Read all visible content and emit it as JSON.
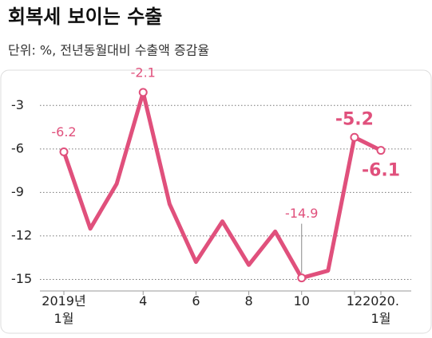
{
  "chart_data": {
    "type": "line",
    "title": "회복세 보이는 수출",
    "subtitle": "단위: %, 전년동월대비 수출액 증감율",
    "categories": [
      "2019년\n1월",
      null,
      null,
      "4",
      null,
      "6",
      null,
      "8",
      null,
      "10",
      null,
      "12",
      "2020.\n1월"
    ],
    "series": [
      {
        "name": "수출액 증감율",
        "color": "#e0507c",
        "values": [
          -6.2,
          -11.5,
          -8.4,
          -2.1,
          -9.8,
          -13.8,
          -11.0,
          -14.0,
          -11.7,
          -14.9,
          -14.4,
          -5.2,
          -6.1
        ],
        "value_labels": [
          "-6.2",
          null,
          null,
          "-2.1",
          null,
          null,
          null,
          null,
          null,
          "-14.9",
          null,
          "-5.2",
          "-6.1"
        ]
      }
    ],
    "ylim": [
      -15.8,
      -1.5
    ],
    "yticks": [
      -3,
      -6,
      -9,
      -12,
      -15
    ],
    "grid": true
  }
}
